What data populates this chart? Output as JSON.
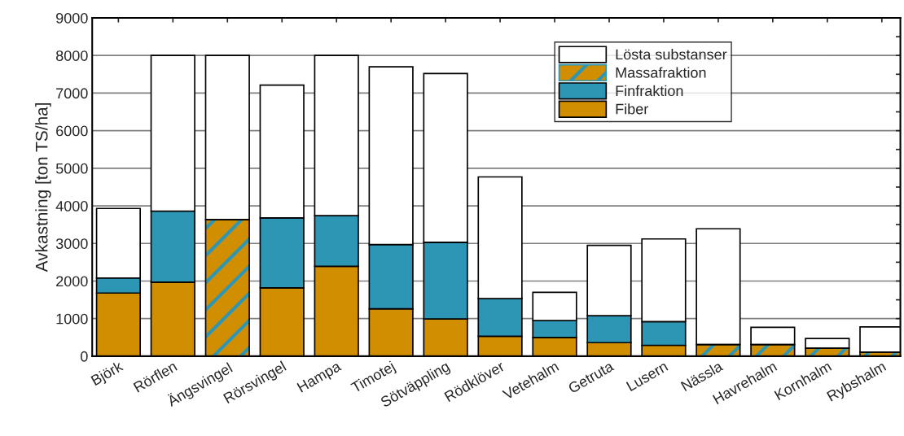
{
  "chart_data": {
    "type": "bar",
    "stacked": true,
    "ylabel": "Avkastning [ton TS/ha]",
    "categories": [
      "Björk",
      "Rörflen",
      "Ängsvingel",
      "Rörsvingel",
      "Hampa",
      "Timotej",
      "Sötväppling",
      "Rödklöver",
      "Vetehalm",
      "Getruta",
      "Lusern",
      "Nässla",
      "Havrehalm",
      "Kornhalm",
      "Rybshalm"
    ],
    "series": [
      {
        "name": "Fiber",
        "color": "#d18e00",
        "values": [
          1680,
          1970,
          null,
          1820,
          2390,
          1260,
          990,
          530,
          500,
          360,
          290,
          null,
          null,
          null,
          null
        ]
      },
      {
        "name": "Finfraktion",
        "color": "#2e96b5",
        "values": [
          400,
          1890,
          null,
          1860,
          1350,
          1710,
          2040,
          1000,
          450,
          720,
          630,
          null,
          null,
          null,
          null
        ]
      },
      {
        "name": "Massafraktion",
        "color": "#d18e00",
        "values": [
          null,
          null,
          3630,
          null,
          null,
          null,
          null,
          null,
          null,
          null,
          null,
          310,
          310,
          210,
          110
        ]
      },
      {
        "name": "Lösta substanser",
        "color": "#ffffff",
        "values": [
          1850,
          4140,
          4370,
          3530,
          4260,
          4730,
          4490,
          3240,
          750,
          1870,
          2200,
          3080,
          460,
          260,
          670
        ]
      }
    ],
    "ylim": [
      0,
      9000
    ],
    "yticks": [
      0,
      1000,
      2000,
      3000,
      4000,
      5000,
      6000,
      7000,
      8000,
      9000
    ],
    "grid": "y",
    "legend": "top right"
  }
}
